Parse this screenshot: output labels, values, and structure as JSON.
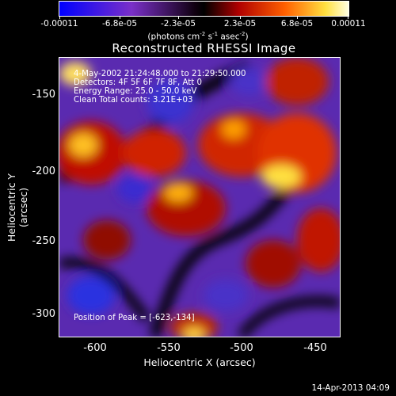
{
  "colorbar": {
    "tick_labels": [
      "-0.00011",
      "-6.8e-05",
      "-2.3e-05",
      "2.3e-05",
      "6.8e-05",
      "0.00011"
    ],
    "units_base": "(photons cm",
    "units_exp1": "-2",
    "units_mid": " s",
    "units_exp2": "-1",
    "units_end": " asec",
    "units_exp3": "-2",
    "units_close": ")"
  },
  "title": "Reconstructed RHESSI Image",
  "annotations": {
    "time_range": "4-May-2002 21:24:48.000 to 21:29:50.000",
    "detectors": "Detectors: 4F 5F 6F 7F 8F, Att 0",
    "energy": "Energy Range: 25.0 - 50.0 keV",
    "clean": "Clean     Total counts: 3.21E+03",
    "peak": "Position of Peak = [-623,-134]"
  },
  "axes": {
    "x_label": "Heliocentric X (arcsec)",
    "y_label": "Heliocentric Y (arcsec)",
    "x_ticks": [
      "-600",
      "-550",
      "-500",
      "-450"
    ],
    "y_ticks": [
      "-150",
      "-200",
      "-250",
      "-300"
    ]
  },
  "timestamp": "14-Apr-2013 04:09",
  "colors": {
    "low": "#1a1aff",
    "mid_neg": "#8a2ab8",
    "zero": "#000000",
    "mid_pos": "#e02000",
    "high": "#ffff40"
  }
}
